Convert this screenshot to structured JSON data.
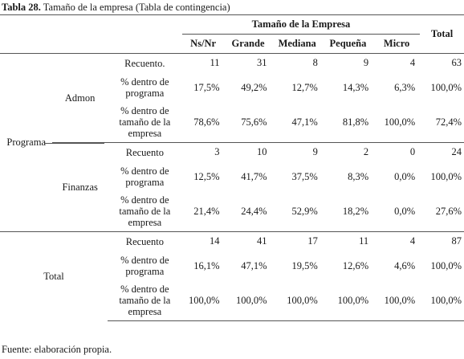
{
  "caption": {
    "label": "Tabla 28.",
    "text": " Tamaño de la empresa (Tabla de contingencia)"
  },
  "header": {
    "group_title": "Tamaño de la Empresa",
    "total": "Total",
    "columns": [
      "Ns/Nr",
      "Grande",
      "Mediana",
      "Pequeña",
      "Micro"
    ]
  },
  "row_dimension": "Programa",
  "groups": [
    {
      "name": "Admon",
      "rows": [
        {
          "label": "Recuento.",
          "values": [
            "11",
            "31",
            "8",
            "9",
            "4"
          ],
          "total": "63"
        },
        {
          "label": "% dentro de programa",
          "values": [
            "17,5%",
            "49,2%",
            "12,7%",
            "14,3%",
            "6,3%"
          ],
          "total": "100,0%"
        },
        {
          "label": "% dentro de tamaño de la empresa",
          "values": [
            "78,6%",
            "75,6%",
            "47,1%",
            "81,8%",
            "100,0%"
          ],
          "total": "72,4%"
        }
      ]
    },
    {
      "name": "Finanzas",
      "rows": [
        {
          "label": "Recuento",
          "values": [
            "3",
            "10",
            "9",
            "2",
            "0"
          ],
          "total": "24"
        },
        {
          "label": "% dentro de programa",
          "values": [
            "12,5%",
            "41,7%",
            "37,5%",
            "8,3%",
            "0,0%"
          ],
          "total": "100,0%"
        },
        {
          "label": "% dentro de tamaño de la empresa",
          "values": [
            "21,4%",
            "24,4%",
            "52,9%",
            "18,2%",
            "0,0%"
          ],
          "total": "27,6%"
        }
      ]
    },
    {
      "name": "Total",
      "rows": [
        {
          "label": "Recuento",
          "values": [
            "14",
            "41",
            "17",
            "11",
            "4"
          ],
          "total": "87"
        },
        {
          "label": "% dentro de programa",
          "values": [
            "16,1%",
            "47,1%",
            "19,5%",
            "12,6%",
            "4,6%"
          ],
          "total": "100,0%"
        },
        {
          "label": "% dentro de tamaño de la empresa",
          "values": [
            "100,0%",
            "100,0%",
            "100,0%",
            "100,0%",
            "100,0%"
          ],
          "total": "100,0%"
        }
      ]
    }
  ],
  "footer": "Fuente: elaboración propia."
}
